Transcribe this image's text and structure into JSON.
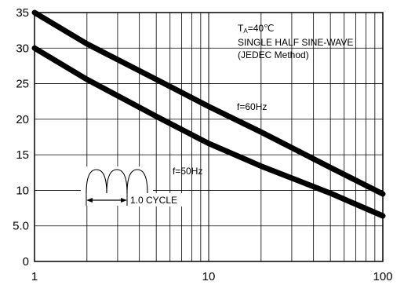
{
  "chart_data": {
    "type": "line",
    "x_scale": "log",
    "xlim": [
      1,
      100
    ],
    "ylim": [
      0,
      35
    ],
    "x_tick_labels": [
      "1",
      "10",
      "100"
    ],
    "y_tick_labels": [
      "0",
      "5.0",
      "10",
      "15",
      "20",
      "25",
      "30",
      "35"
    ],
    "y_tick_values": [
      0,
      5,
      10,
      15,
      20,
      25,
      30,
      35
    ],
    "grid": true,
    "series": [
      {
        "name": "f=60Hz",
        "x": [
          1,
          2,
          5,
          10,
          20,
          50,
          100
        ],
        "y": [
          35,
          30.6,
          25.6,
          21.8,
          18.2,
          13.2,
          9.5
        ]
      },
      {
        "name": "f=50Hz",
        "x": [
          1,
          2,
          5,
          10,
          20,
          50,
          100
        ],
        "y": [
          30,
          25.6,
          20.4,
          16.6,
          13.4,
          9.6,
          6.4
        ]
      }
    ],
    "annotations": {
      "condition_line1_main": "T",
      "condition_line1_sub": "A",
      "condition_line1_rest": "=40℃",
      "condition_line2": "SINGLE HALF SINE-WAVE",
      "condition_line3": "(JEDEC Method)",
      "cycle_label": "1.0 CYCLE"
    },
    "colors": {
      "series": "#000000",
      "grid": "#000000",
      "background": "#ffffff"
    }
  }
}
